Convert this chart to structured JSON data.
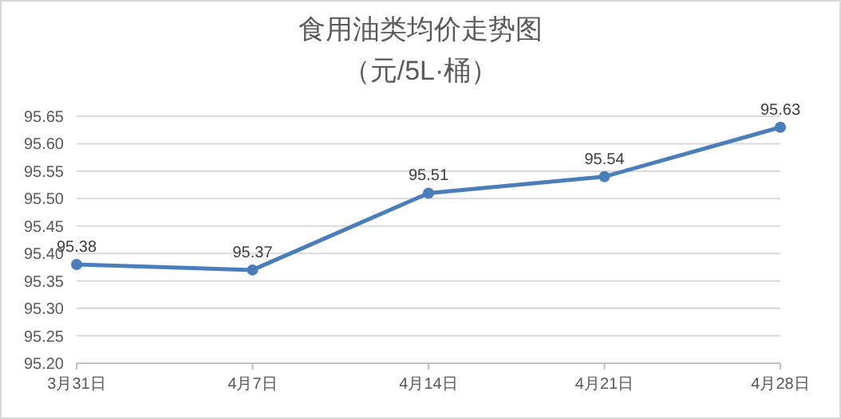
{
  "chart_data": {
    "type": "line",
    "title": "食用油类均价走势图",
    "subtitle": "（元/5L·桶）",
    "categories": [
      "3月31日",
      "4月7日",
      "4月14日",
      "4月21日",
      "4月28日"
    ],
    "series": [
      {
        "color": "#4a7ebb",
        "values": [
          95.38,
          95.37,
          95.51,
          95.54,
          95.63
        ]
      }
    ],
    "ylim": [
      95.2,
      95.65
    ],
    "yticks": [
      {
        "value": 95.2,
        "label": "95.20"
      },
      {
        "value": 95.25,
        "label": "95.25"
      },
      {
        "value": 95.3,
        "label": "95.30"
      },
      {
        "value": 95.35,
        "label": "95.35"
      },
      {
        "value": 95.4,
        "label": "95.40"
      },
      {
        "value": 95.45,
        "label": "95.45"
      },
      {
        "value": 95.5,
        "label": "95.50"
      },
      {
        "value": 95.55,
        "label": "95.55"
      },
      {
        "value": 95.6,
        "label": "95.60"
      },
      {
        "value": 95.65,
        "label": "95.65"
      }
    ],
    "grid": "y",
    "marker": "circle",
    "line_style": "solid",
    "data_labels": true
  }
}
